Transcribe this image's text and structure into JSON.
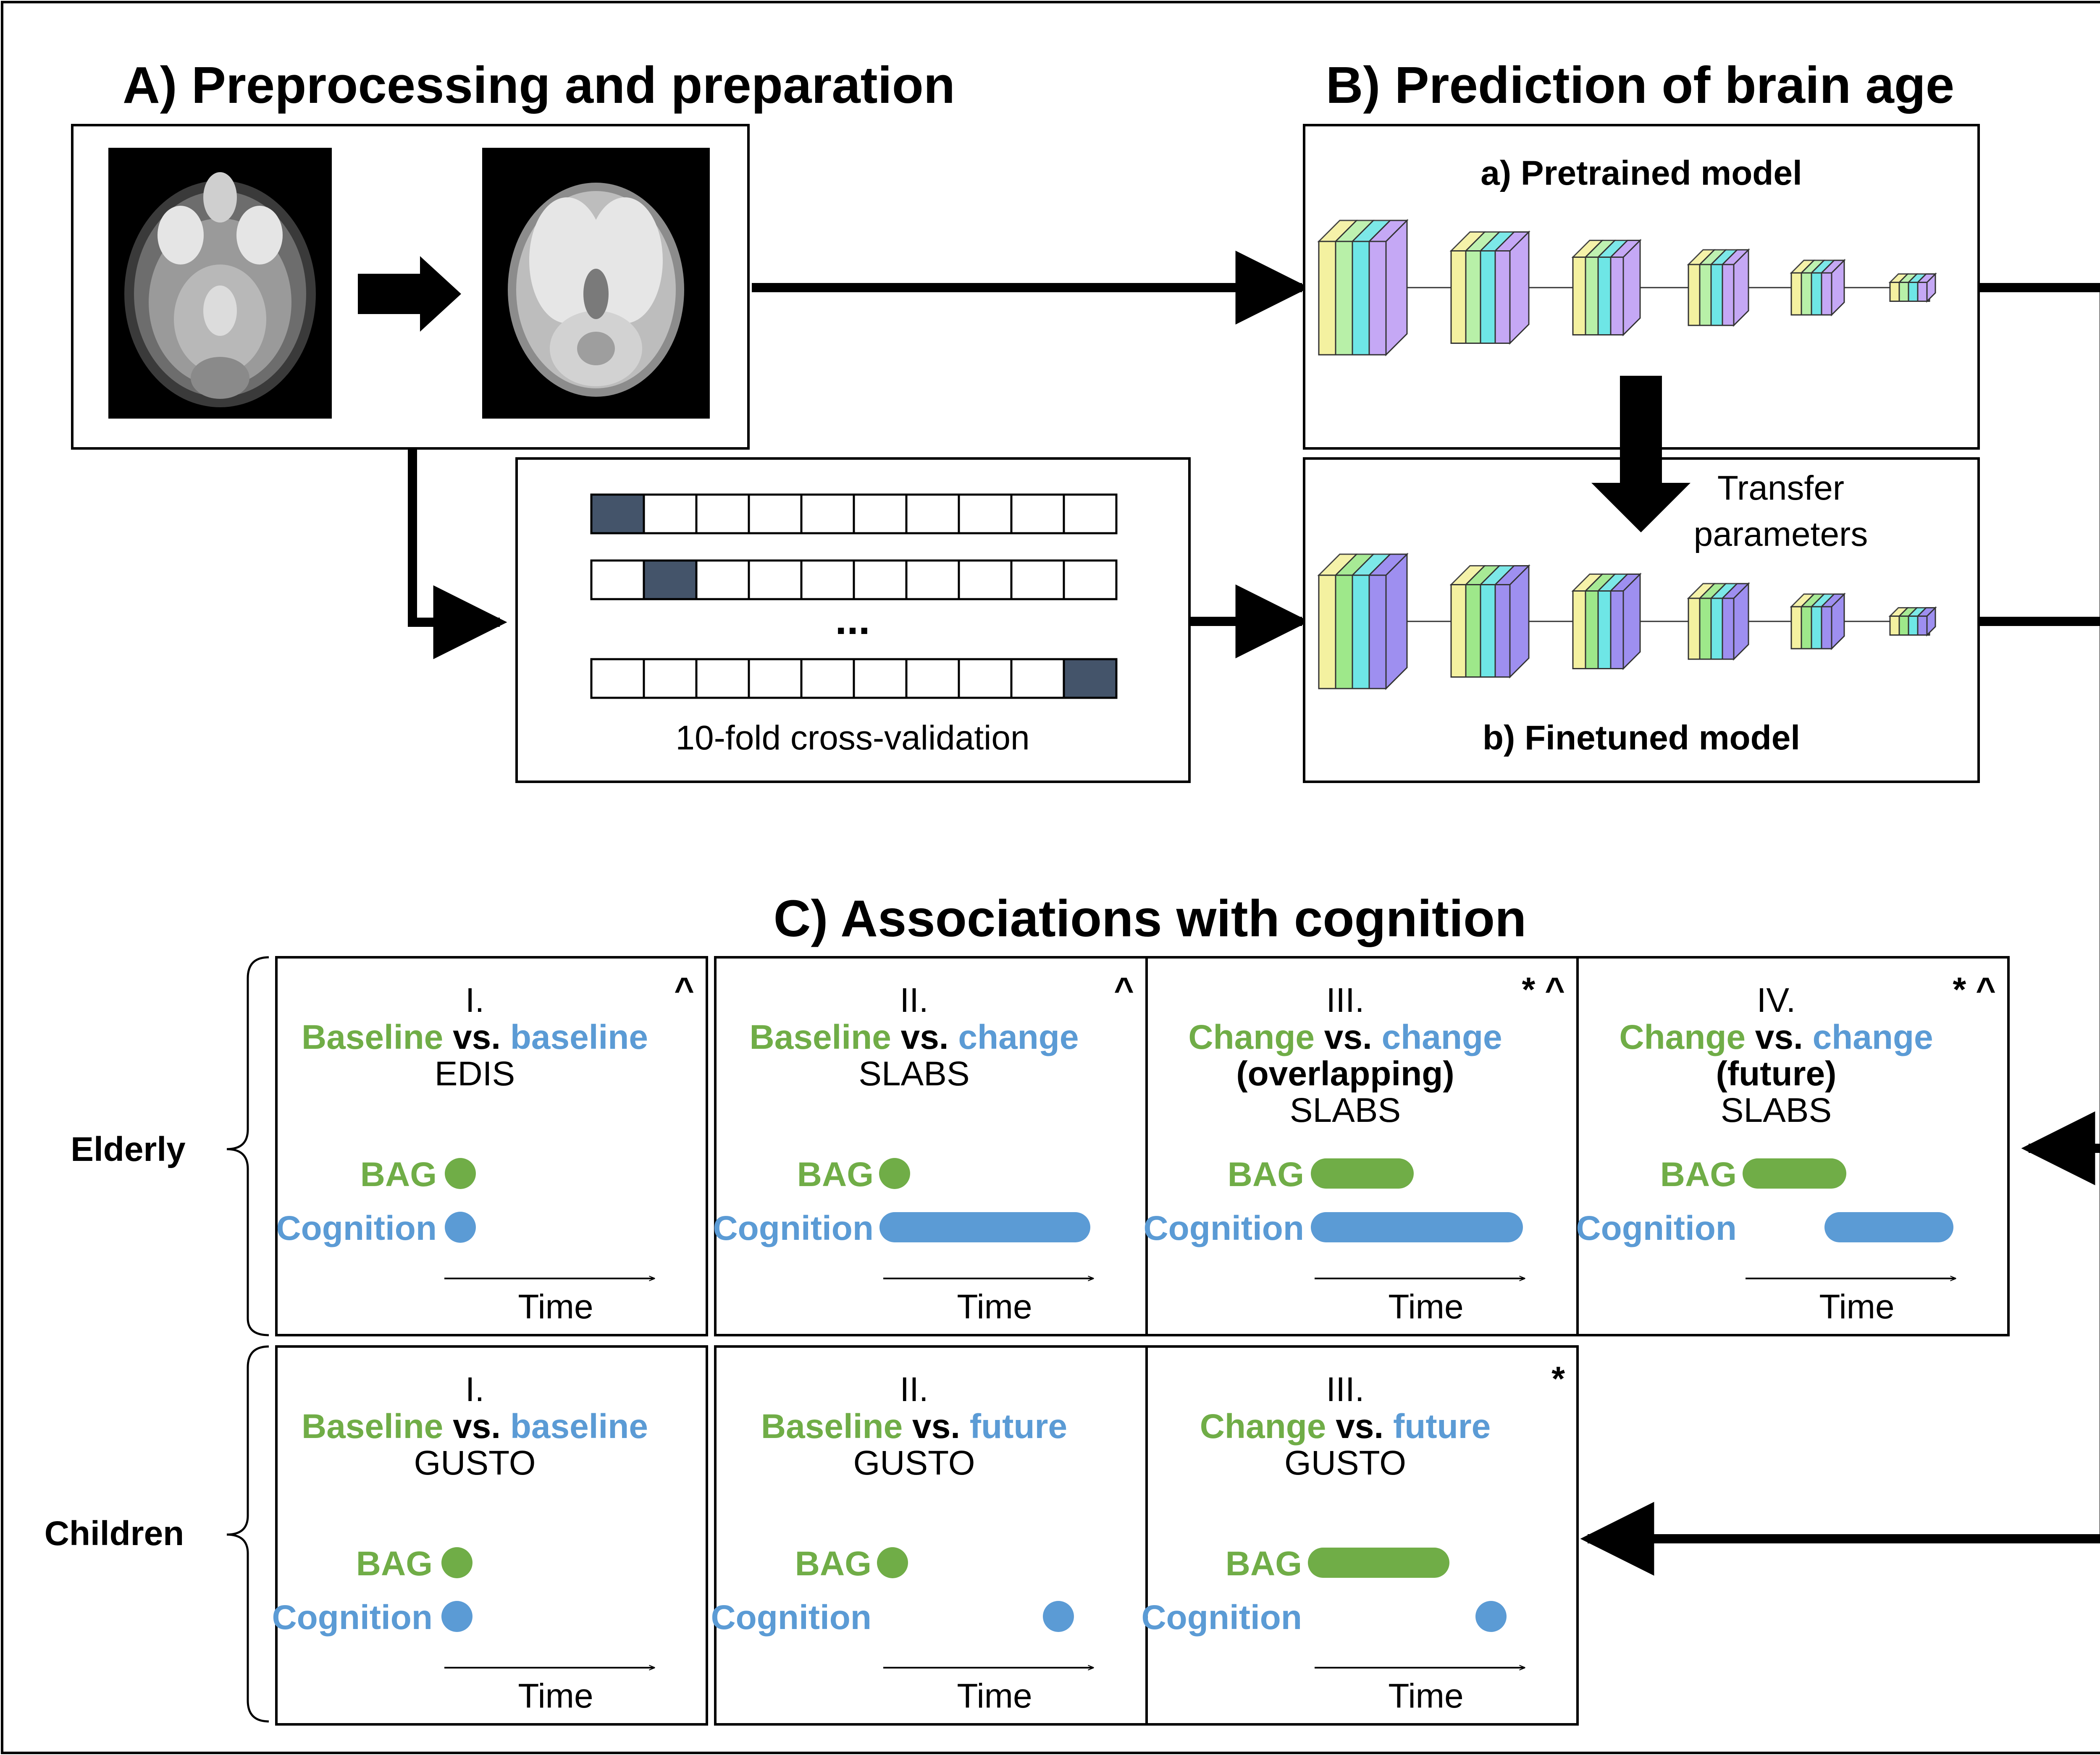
{
  "sections": {
    "a": "A) Preprocessing and preparation",
    "b": "B) Prediction of brain age",
    "c": "C) Associations with cognition"
  },
  "models": {
    "pretrained": "a) Pretrained model",
    "finetuned": "b) Finetuned model",
    "transfer_line1": "Transfer",
    "transfer_line2": "parameters"
  },
  "cv": {
    "ellipsis": "...",
    "label": "10-fold cross-validation",
    "folds": 10,
    "rows_held_out": [
      1,
      2,
      10
    ]
  },
  "groups": {
    "elderly": "Elderly",
    "children": "Children"
  },
  "words": {
    "vs": "vs.",
    "bag": "BAG",
    "cognition": "Cognition",
    "time": "Time"
  },
  "colors": {
    "green": "#70ad47",
    "blue": "#5b9bd5",
    "fold_dark": "#44546a"
  },
  "elderly_panels": [
    {
      "numeral": "I.",
      "mark": "^",
      "left": "Baseline",
      "right": "baseline",
      "extra": "",
      "dataset": "EDIS"
    },
    {
      "numeral": "II.",
      "mark": "^",
      "left": "Baseline",
      "right": "change",
      "extra": "",
      "dataset": "SLABS"
    },
    {
      "numeral": "III.",
      "mark": "* ^",
      "left": "Change",
      "right": "change",
      "extra": "(overlapping)",
      "dataset": "SLABS"
    },
    {
      "numeral": "IV.",
      "mark": "* ^",
      "left": "Change",
      "right": "change",
      "extra": "(future)",
      "dataset": "SLABS"
    }
  ],
  "children_panels": [
    {
      "numeral": "I.",
      "mark": "",
      "left": "Baseline",
      "right": "baseline",
      "extra": "",
      "dataset": "GUSTO"
    },
    {
      "numeral": "II.",
      "mark": "",
      "left": "Baseline",
      "right": "future",
      "extra": "",
      "dataset": "GUSTO"
    },
    {
      "numeral": "III.",
      "mark": "*",
      "left": "Change",
      "right": "future",
      "extra": "",
      "dataset": "GUSTO"
    }
  ]
}
